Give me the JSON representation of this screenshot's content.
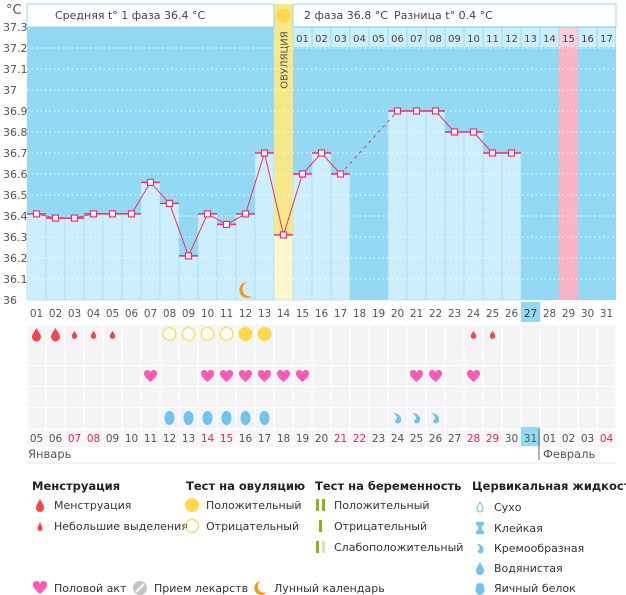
{
  "y_unit": "°C",
  "header": {
    "phase1": "Средняя t° 1 фаза 36.4 °C",
    "phase2": "2 фаза 36.8 °C",
    "diff": "Разница t° 0.4 °C",
    "ovulation_label": "ОВУЛЯЦИЯ",
    "phase2_days": [
      "01",
      "02",
      "03",
      "04",
      "05",
      "06",
      "07",
      "08",
      "09",
      "10",
      "11",
      "12",
      "13",
      "14",
      "15",
      "16",
      "17"
    ],
    "expected_period_marker": "15"
  },
  "colors": {
    "background": "#93d9f3",
    "bar": "#cdeefc",
    "line": "#f0306a",
    "ovulation": "#f5e78c",
    "ovulation_low": "#fff7cc",
    "expected_period": "#f9b2c6",
    "today": "#93d9f3",
    "menstruation": "#f04848",
    "ovulation_test": "#fcd94a",
    "heart": "#f75bb5",
    "fluid": "#6ec3ef",
    "moon": "#f39a1a"
  },
  "chart_data": {
    "type": "bar+line",
    "ylim": [
      36.0,
      37.3
    ],
    "yticks": [
      "37.3",
      "37.2",
      "37.1",
      "37",
      "36.9",
      "36.8",
      "36.7",
      "36.6",
      "36.5",
      "36.4",
      "36.3",
      "36.2",
      "36.1",
      "36"
    ],
    "grid": true,
    "cycle_days": [
      "01",
      "02",
      "03",
      "04",
      "05",
      "06",
      "07",
      "08",
      "09",
      "10",
      "11",
      "12",
      "13",
      "14",
      "15",
      "16",
      "17",
      "18",
      "19",
      "20",
      "21",
      "22",
      "23",
      "24",
      "25",
      "26",
      "27",
      "28",
      "29",
      "30",
      "31"
    ],
    "temperatures": [
      36.41,
      36.39,
      36.39,
      36.41,
      36.41,
      36.41,
      36.56,
      36.46,
      36.21,
      36.41,
      36.36,
      36.41,
      36.7,
      36.31,
      36.6,
      36.7,
      36.6,
      null,
      null,
      36.9,
      36.9,
      36.9,
      36.8,
      36.8,
      36.7,
      36.7,
      null,
      null,
      null,
      null,
      null
    ],
    "ovulation_day": 14,
    "expected_period_day": 29,
    "today_day": 27
  },
  "calendar": {
    "dates": [
      "05",
      "06",
      "07",
      "08",
      "09",
      "10",
      "11",
      "12",
      "13",
      "14",
      "15",
      "16",
      "17",
      "18",
      "19",
      "20",
      "21",
      "22",
      "23",
      "24",
      "25",
      "26",
      "27",
      "28",
      "29",
      "30",
      "31",
      "01",
      "02",
      "03",
      "04"
    ],
    "weekend": [
      false,
      false,
      true,
      true,
      false,
      false,
      false,
      false,
      false,
      true,
      true,
      false,
      false,
      false,
      false,
      false,
      true,
      true,
      false,
      false,
      false,
      false,
      false,
      true,
      true,
      false,
      false,
      false,
      false,
      false,
      true
    ],
    "months": [
      {
        "label": "Январь",
        "start_day": 1
      },
      {
        "label": "Февраль",
        "start_day": 28
      }
    ]
  },
  "markers": {
    "menstruation": {
      "1": "heavy",
      "2": "heavy",
      "3": "light",
      "4": "light",
      "5": "light",
      "24": "light",
      "25": "light"
    },
    "ovulation_test": {
      "8": "negative",
      "9": "negative",
      "10": "negative",
      "11": "negative",
      "12": "positive",
      "13": "positive"
    },
    "intercourse": [
      7,
      10,
      11,
      12,
      13,
      14,
      15,
      21,
      22,
      24
    ],
    "cervical_fluid": {
      "8": "egg-white",
      "9": "egg-white",
      "10": "egg-white",
      "11": "egg-white",
      "12": "egg-white",
      "13": "egg-white",
      "20": "creamy",
      "21": "creamy",
      "22": "creamy"
    },
    "moon_day": 12
  },
  "legend": {
    "menstruation": {
      "title": "Менструация",
      "items": [
        "Менструация",
        "Небольшие выделения"
      ]
    },
    "ovulation_test": {
      "title": "Тест на овуляцию",
      "items": [
        "Положительный",
        "Отрицательный"
      ]
    },
    "pregnancy_test": {
      "title": "Тест на беременность",
      "items": [
        "Положительный",
        "Отрицательный",
        "Слабоположительный"
      ]
    },
    "cervical_fluid": {
      "title": "Цервикальная жидкость",
      "items": [
        "Сухо",
        "Клейкая",
        "Кремообразная",
        "Водянистая",
        "Яичный белок"
      ]
    },
    "other": [
      "Половой акт",
      "Прием лекарств",
      "Лунный календарь"
    ]
  }
}
